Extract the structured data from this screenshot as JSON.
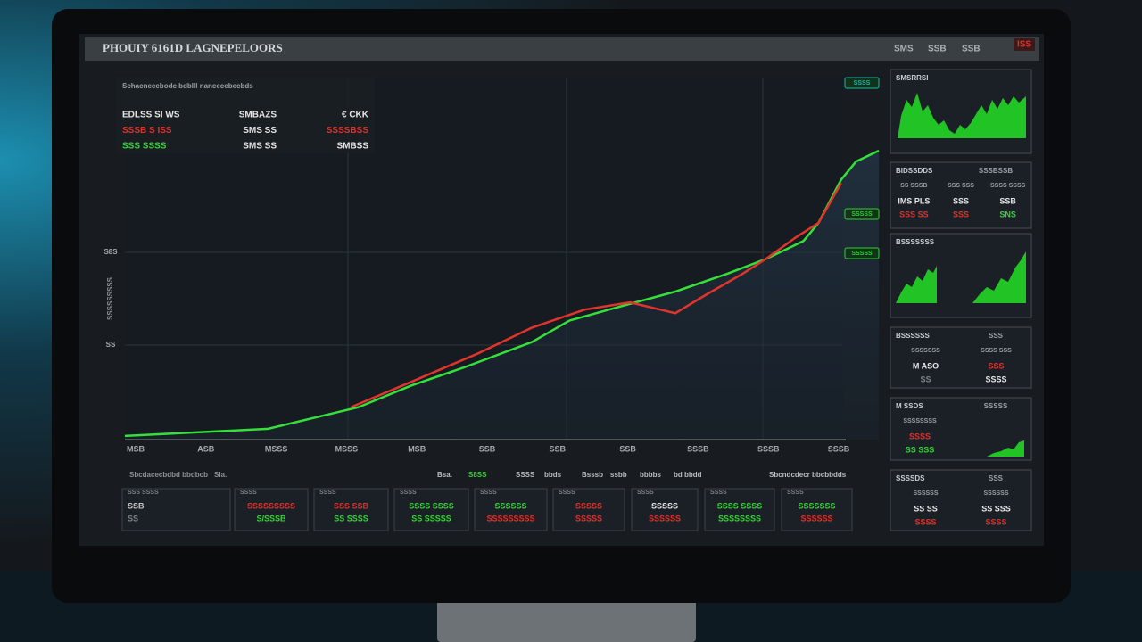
{
  "header": {
    "title": "PHOUIY 6161D LAGNEPELOORS",
    "right": [
      "SMS",
      "SSB",
      "SSB"
    ],
    "alert": "ISS"
  },
  "summary": {
    "heading": "Schacnecebodc bdblll nancecebecbds",
    "rows": [
      [
        {
          "text": "EDLSS SI WS",
          "color": "#e6e6e6"
        },
        {
          "text": "SMBAZS",
          "color": "#e6e6e6"
        },
        {
          "text": "€ CKK",
          "color": "#e6e6e6"
        }
      ],
      [
        {
          "text": "SSSB S ISS",
          "color": "#e0312b"
        },
        {
          "text": "SMS SS",
          "color": "#e6e6e6"
        },
        {
          "text": "SSSSBSS",
          "color": "#e0312b"
        }
      ],
      [
        {
          "text": "SSS SSSS",
          "color": "#34d435"
        },
        {
          "text": "SMS SS",
          "color": "#e6e6e6"
        },
        {
          "text": "SMBSS",
          "color": "#e6e6e6"
        }
      ]
    ]
  },
  "chart_data": {
    "type": "line",
    "x_labels": [
      "MSB",
      "ASB",
      "MSSS",
      "MSSS",
      "MSB",
      "SSB",
      "SSB",
      "SSB",
      "SSSB",
      "SSSB",
      "SSSB"
    ],
    "y_labels": [
      "S8S",
      "SS"
    ],
    "y_axis_label": "SSSSSSSSS",
    "xlim": [
      0,
      100
    ],
    "ylim": [
      0,
      100
    ],
    "series": [
      {
        "color": "#35e03a",
        "x": [
          0,
          19,
          31,
          38,
          45,
          54,
          59,
          66,
          73,
          80,
          85,
          90,
          92,
          95,
          97,
          100
        ],
        "values": [
          1,
          3,
          9,
          15,
          20,
          27,
          33,
          37,
          41,
          46,
          50,
          55,
          60,
          72,
          77,
          80
        ]
      },
      {
        "color": "#e2342c",
        "x": [
          30,
          38,
          47,
          54,
          61,
          67,
          71,
          73,
          77,
          82,
          85,
          89,
          92,
          95
        ],
        "values": [
          9,
          16,
          24,
          31,
          36,
          38,
          36,
          35,
          40,
          46,
          50,
          56,
          60,
          71
        ]
      }
    ],
    "tags": [
      {
        "text": "SSSS",
        "color": "#1fb5a8"
      },
      {
        "text": "SSSSS",
        "color": "#2fd12f"
      },
      {
        "text": "SSSSS",
        "color": "#2fd12f"
      }
    ]
  },
  "legend_row": [
    {
      "text": "Sbcdacecbdbd bbdbcb",
      "color": "#8b9196"
    },
    {
      "text": "Sla.",
      "color": "#8b9196"
    },
    {
      "text": "Bsa.",
      "color": "#b8bdc0"
    },
    {
      "text": "S8SS",
      "color": "#34d435"
    },
    {
      "text": "SSSS",
      "color": "#b8bdc0"
    },
    {
      "text": "bbds",
      "color": "#b8bdc0"
    },
    {
      "text": "Bsssb",
      "color": "#b8bdc0"
    },
    {
      "text": "ssbb",
      "color": "#b8bdc0"
    },
    {
      "text": "bbbbs",
      "color": "#b8bdc0"
    },
    {
      "text": "bd bbdd",
      "color": "#b8bdc0"
    },
    {
      "text": "Sbcndcdecr bbcbbdds",
      "color": "#b8bdc0"
    }
  ],
  "tiles": [
    {
      "label": "SSS SSSS",
      "top": "SSB",
      "bottom": "SS",
      "top_color": "#c8c8c8",
      "bottom_color": "#7d8388"
    },
    {
      "label": "SSSS",
      "top": "SSSSSSSSS",
      "bottom": "S/SSSB",
      "top_color": "#e0312b",
      "bottom_color": "#34d435"
    },
    {
      "label": "SSSS",
      "top": "SSS SSB",
      "bottom": "SS SSSS",
      "top_color": "#e0312b",
      "bottom_color": "#34d435"
    },
    {
      "label": "SSSS",
      "top": "SSSS SSSS",
      "bottom": "SS SSSSS",
      "top_color": "#34d435",
      "bottom_color": "#34d435"
    },
    {
      "label": "SSSS",
      "top": "SSSSSS",
      "bottom": "SSSSSSSSS",
      "top_color": "#34d435",
      "bottom_color": "#e0312b"
    },
    {
      "label": "SSSS",
      "top": "SSSSS",
      "bottom": "SSSSS",
      "top_color": "#e0312b",
      "bottom_color": "#e0312b"
    },
    {
      "label": "SSSS",
      "top": "SSSSS",
      "bottom": "SSSSSS",
      "top_color": "#e6e6e6",
      "bottom_color": "#e0312b"
    },
    {
      "label": "SSSS",
      "top": "SSSS SSSS",
      "bottom": "SSSSSSSS",
      "top_color": "#34d435",
      "bottom_color": "#34d435"
    },
    {
      "label": "SSSS",
      "top": "SSSSSSS",
      "bottom": "SSSSSS",
      "top_color": "#34d435",
      "bottom_color": "#e0312b"
    }
  ],
  "side_panels": [
    {
      "title": "SMSRRSI"
    },
    {
      "title": "BIDSSDDS",
      "tag": "SSSBSSB",
      "columns": [
        "SS SSSB",
        "SSS SSS",
        "SSSS SSSS"
      ],
      "rows": [
        [
          {
            "text": "IMS PLS",
            "color": "#e6e6e6"
          },
          {
            "text": "SSS",
            "color": "#e6e6e6"
          },
          {
            "text": "SSB",
            "color": "#e6e6e6"
          }
        ],
        [
          {
            "text": "SSS SS",
            "color": "#e0312b"
          },
          {
            "text": "SSS",
            "color": "#e0312b"
          },
          {
            "text": "SNS",
            "color": "#34d435"
          }
        ]
      ]
    },
    {
      "title": "BSSSSSSS"
    },
    {
      "title": "BSSSSSS",
      "tag": "SSS",
      "columns": [
        "SSSSSSS",
        "SSSS SSS"
      ],
      "rows": [
        [
          {
            "text": "M ASO",
            "color": "#e6e6e6"
          },
          {
            "text": "SSS",
            "color": "#e0312b"
          }
        ],
        [
          {
            "text": "SS",
            "color": "#7d8388"
          },
          {
            "text": "SSSS",
            "color": "#e6e6e6"
          }
        ]
      ]
    },
    {
      "title": "M SSDS",
      "tag": "SSSSS",
      "columns": [
        "SSSSSSSS"
      ],
      "rows": [
        [
          {
            "text": "SSSS",
            "color": "#e0312b"
          }
        ],
        [
          {
            "text": "SS SSS",
            "color": "#34d435"
          }
        ]
      ]
    },
    {
      "title": "SSSSDS",
      "tag": "SSS",
      "columns": [
        "SSSSSS",
        "SSSSSS"
      ],
      "rows": [
        [
          {
            "text": "SS SS",
            "color": "#e6e6e6"
          },
          {
            "text": "SS SSS",
            "color": "#e6e6e6"
          }
        ],
        [
          {
            "text": "SSSS",
            "color": "#e0312b"
          },
          {
            "text": "SSSS",
            "color": "#e0312b"
          }
        ]
      ]
    }
  ]
}
